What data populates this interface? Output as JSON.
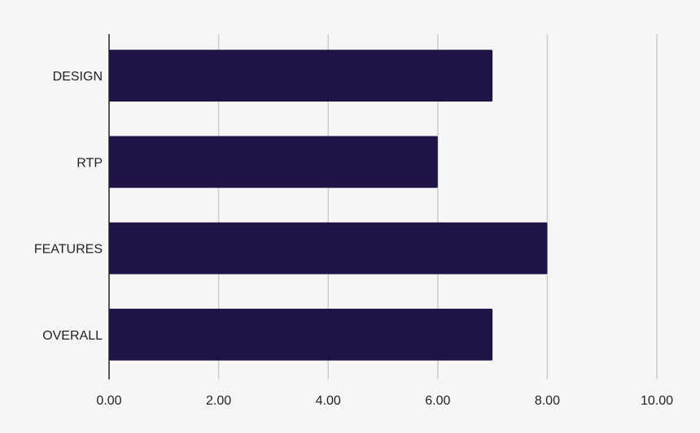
{
  "chart_data": {
    "type": "bar",
    "orientation": "horizontal",
    "categories": [
      "DESIGN",
      "RTP",
      "FEATURES",
      "OVERALL"
    ],
    "values": [
      7,
      6,
      8,
      7
    ],
    "xlim": [
      0,
      10
    ],
    "x_ticks": [
      "0.00",
      "2.00",
      "4.00",
      "6.00",
      "8.00",
      "10.00"
    ],
    "grid": true,
    "bar_color": "#201447",
    "grid_color": "#cccccc",
    "axis_color": "#222222",
    "background": "#f6f6f6"
  }
}
